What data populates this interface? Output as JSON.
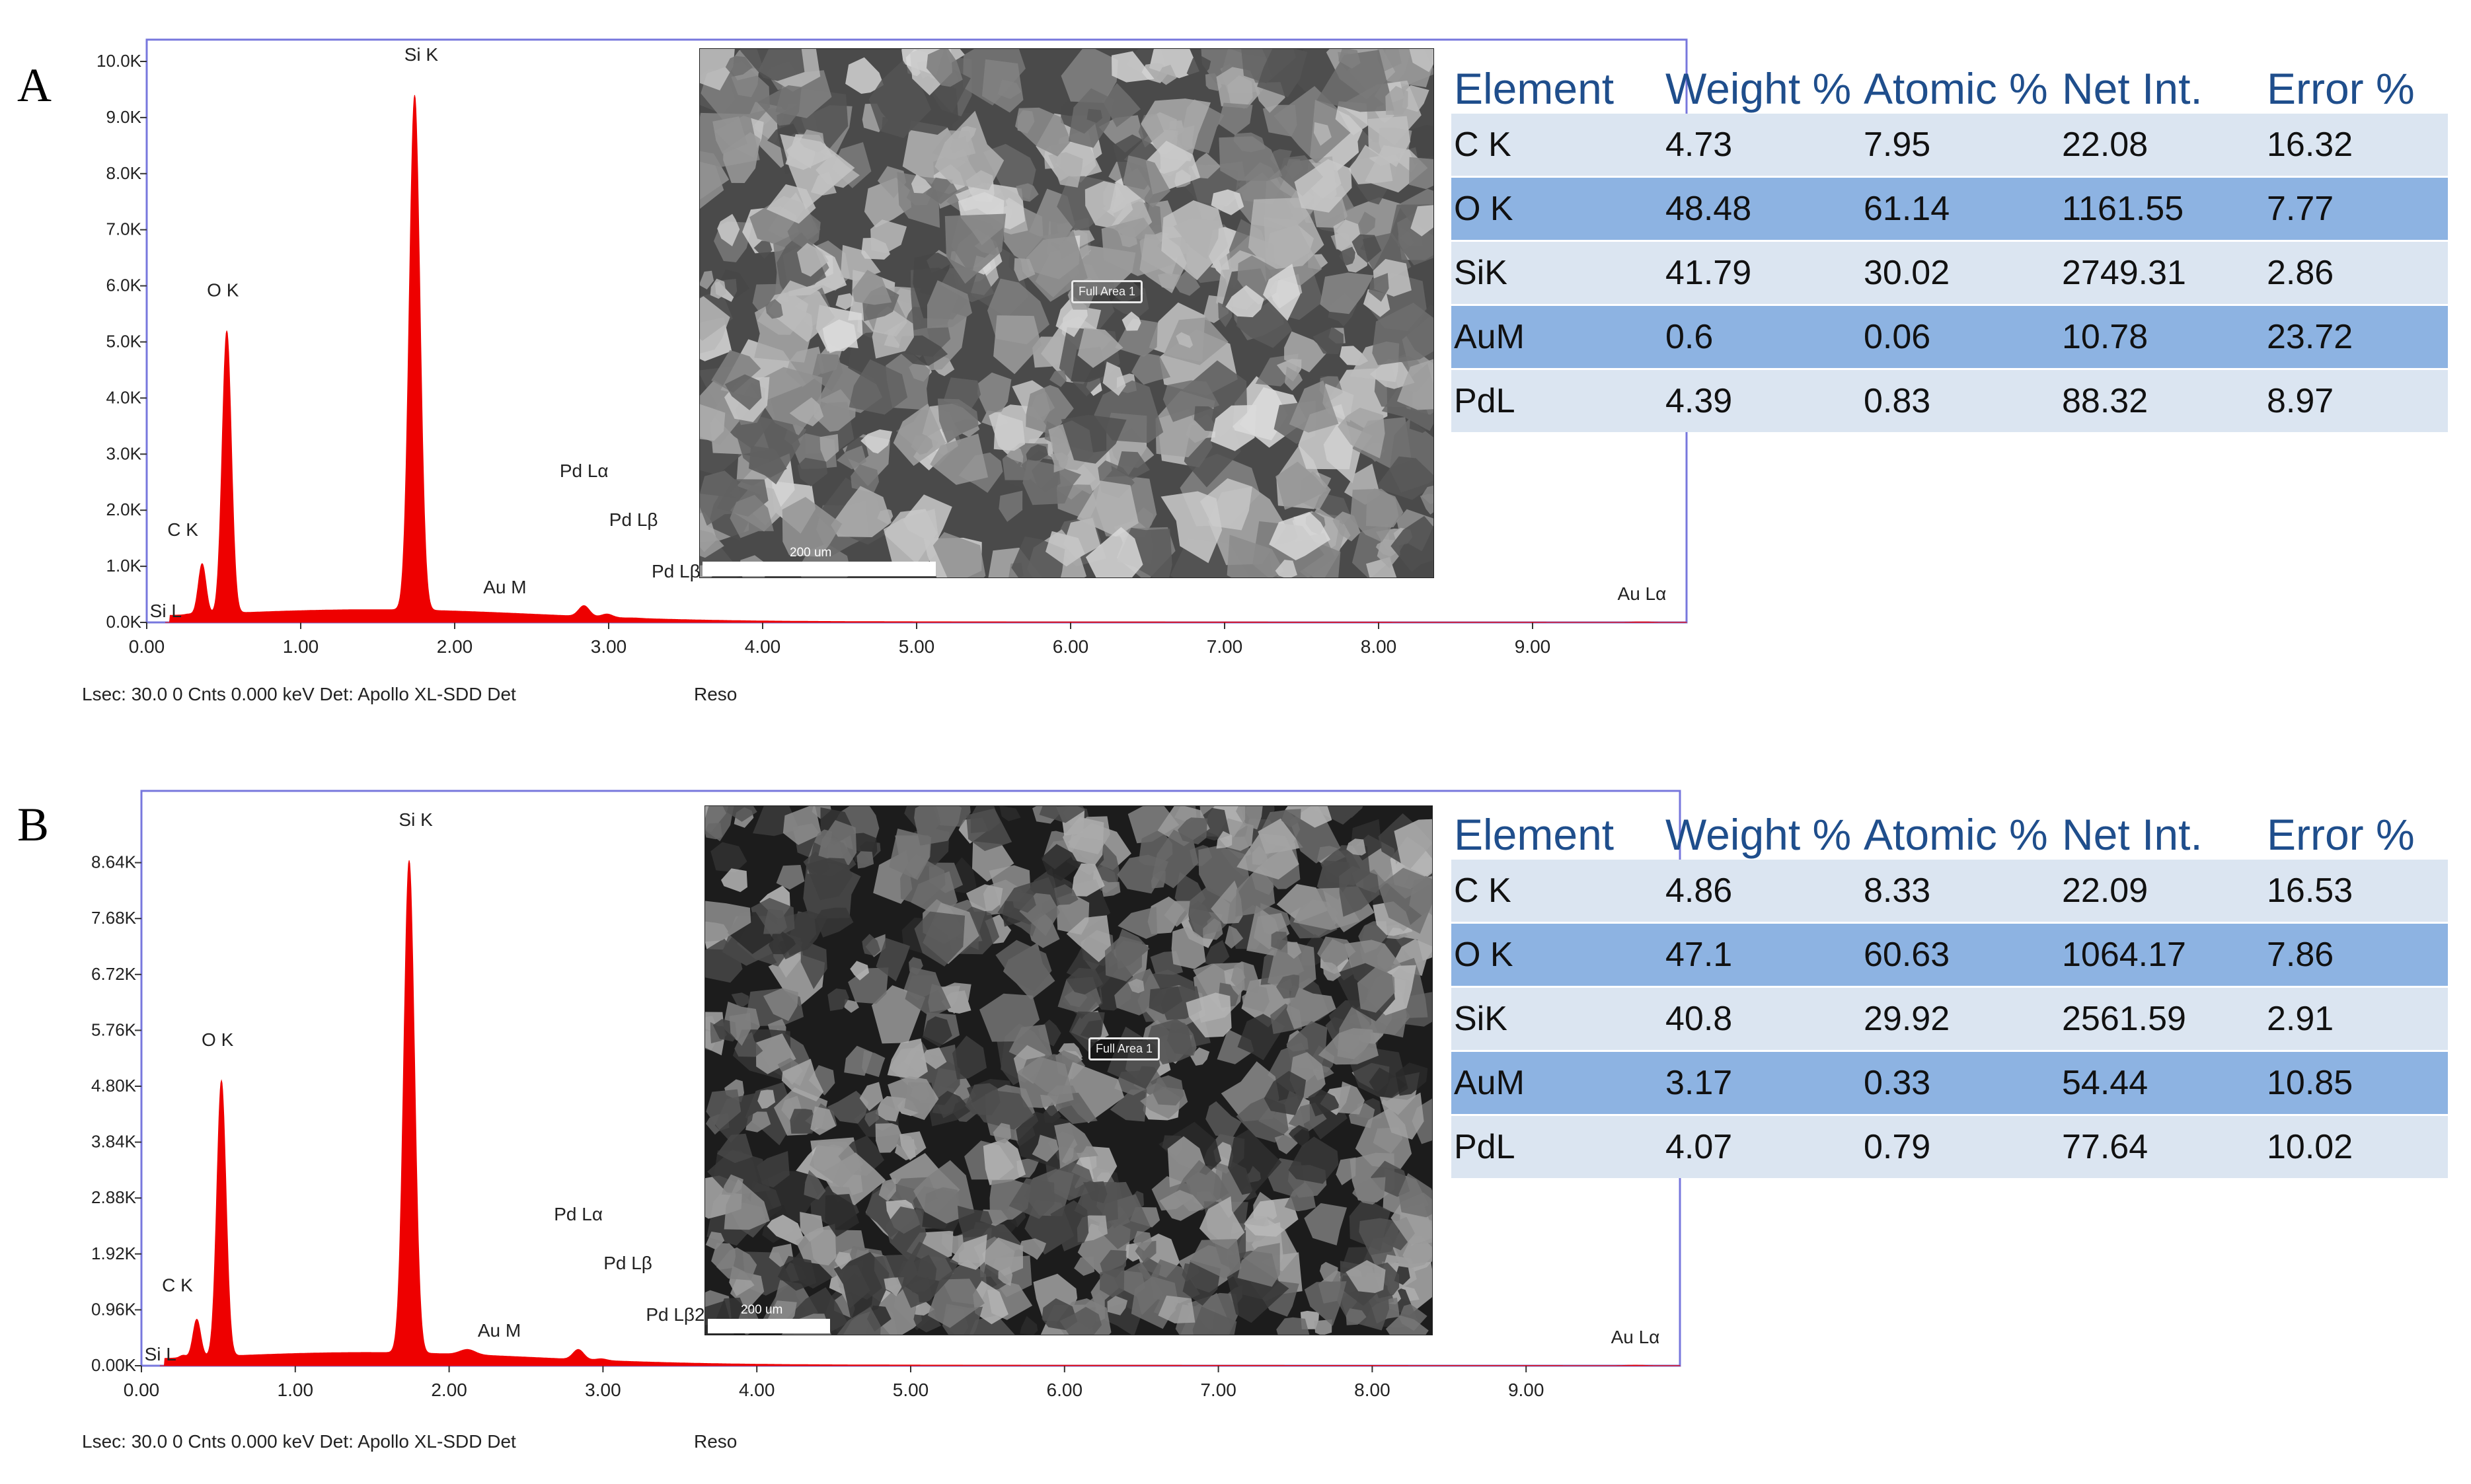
{
  "panels": [
    {
      "letter": "A",
      "chart_data": {
        "type": "line",
        "x_ticks": [
          "0.00",
          "1.00",
          "2.00",
          "3.00",
          "4.00",
          "5.00",
          "6.00",
          "7.00",
          "8.00",
          "9.00"
        ],
        "y_ticks": [
          "0.0K",
          "1.0K",
          "2.0K",
          "3.0K",
          "4.0K",
          "5.0K",
          "6.0K",
          "7.0K",
          "8.0K",
          "9.0K",
          "10.0K"
        ],
        "xlim": [
          0,
          10
        ],
        "ylim": [
          0,
          10000
        ],
        "peaks": [
          {
            "label": "Si L",
            "x": 0.27,
            "y": 150
          },
          {
            "label": "C  K",
            "x": 0.36,
            "y": 1050
          },
          {
            "label": "O  K",
            "x": 0.52,
            "y": 5200
          },
          {
            "label": "Si K",
            "x": 1.74,
            "y": 9400
          },
          {
            "label": "Au M",
            "x": 2.12,
            "y": 60
          },
          {
            "label": "Pd Lα",
            "x": 2.84,
            "y": 300
          },
          {
            "label": "Pd Lβ",
            "x": 2.99,
            "y": 150
          },
          {
            "label": "Pd Lβ2",
            "x": 3.17,
            "y": 80
          },
          {
            "label": "Au Lα",
            "x": 9.71,
            "y": 10
          }
        ],
        "footer_text": "Lsec: 30.0 0 Cnts  0.000 keV Det: Apollo XL-SDD Det",
        "footer_reso": "Reso"
      },
      "image": {
        "scale_label": "200 um",
        "roi_label": "Full Area 1"
      },
      "table": {
        "headers": [
          "Element",
          "Weight %",
          "Atomic %",
          "Net Int.",
          "Error %"
        ],
        "rows": [
          [
            "C K",
            "4.73",
            "7.95",
            "22.08",
            "16.32"
          ],
          [
            "O K",
            "48.48",
            "61.14",
            "1161.55",
            "7.77"
          ],
          [
            "SiK",
            "41.79",
            "30.02",
            "2749.31",
            "2.86"
          ],
          [
            "AuM",
            "0.6",
            "0.06",
            "10.78",
            "23.72"
          ],
          [
            "PdL",
            "4.39",
            "0.83",
            "88.32",
            "8.97"
          ]
        ]
      }
    },
    {
      "letter": "B",
      "chart_data": {
        "type": "line",
        "x_ticks": [
          "0.00",
          "1.00",
          "2.00",
          "3.00",
          "4.00",
          "5.00",
          "6.00",
          "7.00",
          "8.00",
          "9.00"
        ],
        "y_ticks": [
          "0.00K",
          "0.96K",
          "1.92K",
          "2.88K",
          "3.84K",
          "4.80K",
          "5.76K",
          "6.72K",
          "7.68K",
          "8.64K"
        ],
        "xlim": [
          0,
          10
        ],
        "ylim": [
          0,
          9600
        ],
        "peaks": [
          {
            "label": "Si L",
            "x": 0.27,
            "y": 180
          },
          {
            "label": "C  K",
            "x": 0.36,
            "y": 800
          },
          {
            "label": "O  K",
            "x": 0.52,
            "y": 4900
          },
          {
            "label": "Si K",
            "x": 1.74,
            "y": 8680
          },
          {
            "label": "Au M",
            "x": 2.12,
            "y": 280
          },
          {
            "label": "Pd Lα",
            "x": 2.84,
            "y": 280
          },
          {
            "label": "Pd Lβ",
            "x": 2.99,
            "y": 120
          },
          {
            "label": "Pd Lβ2",
            "x": 3.17,
            "y": 60
          },
          {
            "label": "Au Lα",
            "x": 9.71,
            "y": 10
          }
        ],
        "footer_text": "Lsec: 30.0 0 Cnts  0.000 keV Det: Apollo XL-SDD Det",
        "footer_reso": "Reso"
      },
      "image": {
        "scale_label": "200 um",
        "roi_label": "Full Area 1"
      },
      "table": {
        "headers": [
          "Element",
          "Weight %",
          "Atomic %",
          "Net Int.",
          "Error %"
        ],
        "rows": [
          [
            "C K",
            "4.86",
            "8.33",
            "22.09",
            "16.53"
          ],
          [
            "O K",
            "47.1",
            "60.63",
            "1064.17",
            "7.86"
          ],
          [
            "SiK",
            "40.8",
            "29.92",
            "2561.59",
            "2.91"
          ],
          [
            "AuM",
            "3.17",
            "0.33",
            "54.44",
            "10.85"
          ],
          [
            "PdL",
            "4.07",
            "0.79",
            "77.64",
            "10.02"
          ]
        ]
      }
    }
  ],
  "colors": {
    "spectrum_fill": "#ee0000",
    "frame": "#7777dd",
    "header_text": "#1f4e8c",
    "row_light": "#dbe5f1",
    "row_dark": "#8db3e2"
  }
}
